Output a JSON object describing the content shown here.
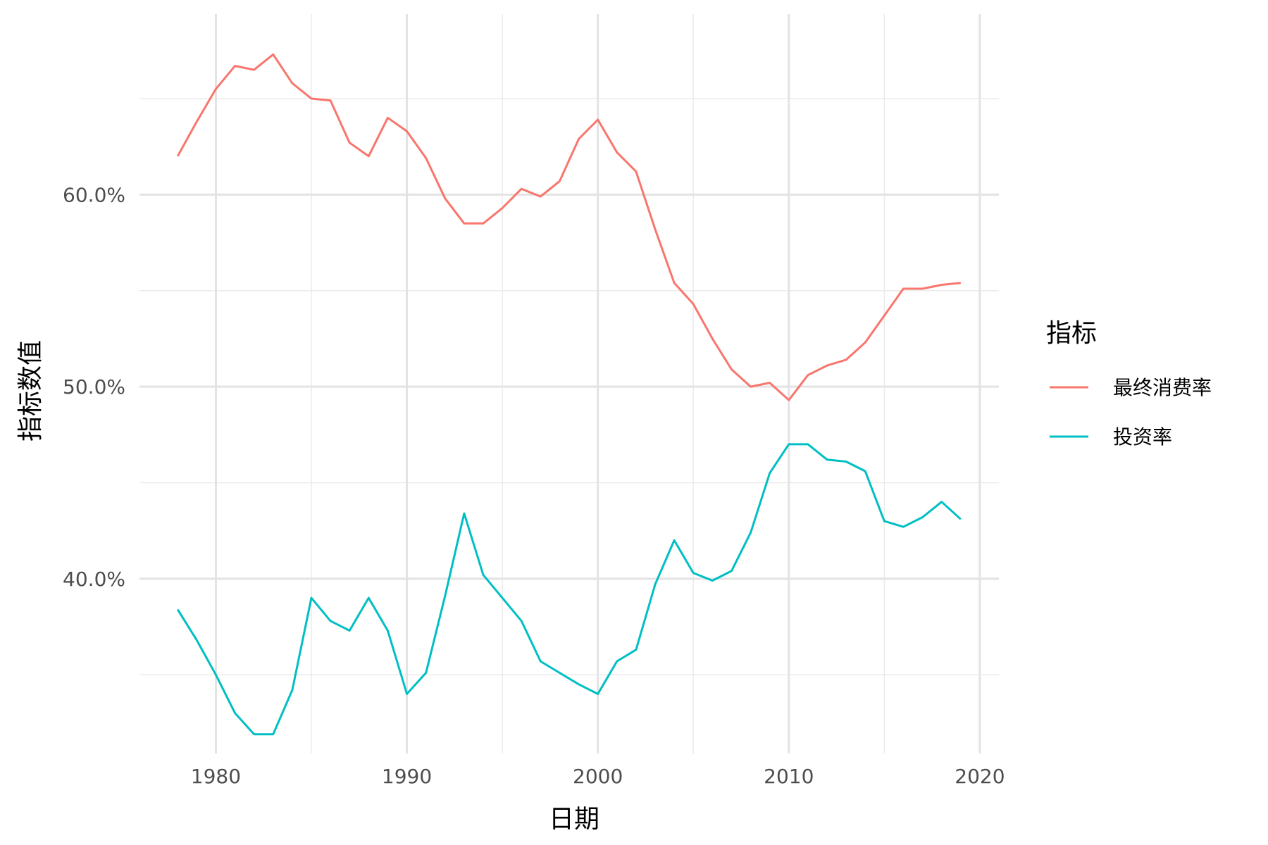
{
  "chart_data": {
    "type": "line",
    "xlabel": "日期",
    "ylabel": "指标数值",
    "xlim": [
      1976,
      2021
    ],
    "ylim": [
      30.9,
      69.4
    ],
    "x_ticks": [
      1980,
      1990,
      2000,
      2010,
      2020
    ],
    "x_tick_labels": [
      "1980",
      "1990",
      "2000",
      "2010",
      "2020"
    ],
    "y_ticks": [
      40,
      50,
      60
    ],
    "y_tick_labels": [
      "40.0%",
      "50.0%",
      "60.0%"
    ],
    "x_minor_ticks": [
      1985,
      1995,
      2005,
      2015
    ],
    "y_minor_ticks": [
      35,
      45,
      55,
      65
    ],
    "grid": true,
    "legend": {
      "title": "指标",
      "position": "right"
    },
    "x": [
      1978,
      1979,
      1980,
      1981,
      1982,
      1983,
      1984,
      1985,
      1986,
      1987,
      1988,
      1989,
      1990,
      1991,
      1992,
      1993,
      1994,
      1995,
      1996,
      1997,
      1998,
      1999,
      2000,
      2001,
      2002,
      2003,
      2004,
      2005,
      2006,
      2007,
      2008,
      2009,
      2010,
      2011,
      2012,
      2013,
      2014,
      2015,
      2016,
      2017,
      2018,
      2019
    ],
    "series": [
      {
        "name": "最终消费率",
        "color": "#F8766D",
        "values": [
          62.0,
          63.8,
          65.5,
          66.7,
          66.5,
          67.3,
          65.8,
          65.0,
          64.9,
          62.7,
          62.0,
          64.0,
          63.3,
          61.9,
          59.8,
          58.5,
          58.5,
          59.3,
          60.3,
          59.9,
          60.7,
          62.9,
          63.9,
          62.2,
          61.2,
          58.2,
          55.4,
          54.3,
          52.5,
          50.9,
          50.0,
          50.2,
          49.3,
          50.6,
          51.1,
          51.4,
          52.3,
          53.7,
          55.1,
          55.1,
          55.3,
          55.4
        ]
      },
      {
        "name": "投资率",
        "color": "#00BFC4",
        "values": [
          38.4,
          36.8,
          35.0,
          33.0,
          31.9,
          31.9,
          34.2,
          39.0,
          37.8,
          37.3,
          39.0,
          37.3,
          34.0,
          35.1,
          39.1,
          43.4,
          40.2,
          39.0,
          37.8,
          35.7,
          35.1,
          34.5,
          34.0,
          35.7,
          36.3,
          39.7,
          42.0,
          40.3,
          39.9,
          40.4,
          42.4,
          45.5,
          47.0,
          47.0,
          46.2,
          46.1,
          45.6,
          43.0,
          42.7,
          43.2,
          44.0,
          43.1
        ]
      }
    ]
  }
}
